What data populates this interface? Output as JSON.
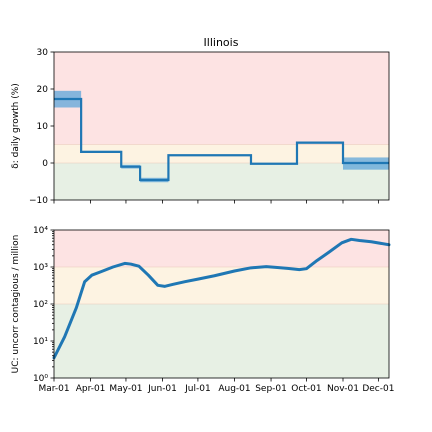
{
  "title": "Illinois",
  "colors": {
    "line": "#1f77b4",
    "band": "#5da5d9",
    "zone_red": "#fde3e3",
    "zone_yellow": "#fdf3e2",
    "zone_green": "#e7f0e4",
    "zone_border": "#e8c8b8"
  },
  "x_tick_labels": [
    "Mar-01",
    "Apr-01",
    "May-01",
    "Jun-01",
    "Jul-01",
    "Aug-01",
    "Sep-01",
    "Oct-01",
    "Nov-01",
    "Dec-01"
  ],
  "chart_data": [
    {
      "type": "line",
      "title": "Illinois",
      "ylabel": "δ: daily growth (%)",
      "ylim": [
        -10,
        30
      ],
      "yticks": [
        "30",
        "20",
        "10",
        "0",
        "−10"
      ],
      "ytick_values": [
        30,
        20,
        10,
        0,
        -10
      ],
      "xlim": [
        "2020-03-01",
        "2020-12-10"
      ],
      "zones": [
        {
          "level": "high",
          "range": [
            5,
            30
          ]
        },
        {
          "level": "medium",
          "range": [
            0,
            5
          ]
        },
        {
          "level": "low",
          "range": [
            -10,
            0
          ]
        }
      ],
      "steps": [
        {
          "start": "2020-03-01",
          "end": "2020-03-24",
          "value": 17.3,
          "low": 15.0,
          "high": 19.5
        },
        {
          "start": "2020-03-24",
          "end": "2020-04-27",
          "value": 3.0,
          "low": 2.7,
          "high": 3.3
        },
        {
          "start": "2020-04-27",
          "end": "2020-05-13",
          "value": -1.0,
          "low": -1.5,
          "high": -0.5
        },
        {
          "start": "2020-05-13",
          "end": "2020-06-06",
          "value": -4.6,
          "low": -5.2,
          "high": -4.0
        },
        {
          "start": "2020-06-06",
          "end": "2020-08-15",
          "value": 2.1,
          "low": 1.9,
          "high": 2.3
        },
        {
          "start": "2020-08-15",
          "end": "2020-09-23",
          "value": -0.2,
          "low": -0.4,
          "high": 0.0
        },
        {
          "start": "2020-09-23",
          "end": "2020-11-01",
          "value": 5.5,
          "low": 5.2,
          "high": 5.8
        },
        {
          "start": "2020-11-01",
          "end": "2020-12-10",
          "value": 0.0,
          "low": -1.8,
          "high": 1.5
        }
      ]
    },
    {
      "type": "line",
      "ylabel": "UC: uncorr contagious / million",
      "yscale": "log",
      "ylim": [
        1,
        10000
      ],
      "yticks": [
        "10⁴",
        "10³",
        "10²",
        "10¹",
        "10⁰"
      ],
      "ytick_values": [
        10000,
        1000,
        100,
        10,
        1
      ],
      "xlim": [
        "2020-03-01",
        "2020-12-10"
      ],
      "zones": [
        {
          "level": "high",
          "range": [
            1000,
            10000
          ]
        },
        {
          "level": "medium",
          "range": [
            100,
            1000
          ]
        },
        {
          "level": "low",
          "range": [
            1,
            100
          ]
        }
      ],
      "series": [
        {
          "x": [
            "2020-03-01",
            "2020-03-10",
            "2020-03-20",
            "2020-03-27",
            "2020-04-02",
            "2020-04-10",
            "2020-04-20",
            "2020-04-30",
            "2020-05-05",
            "2020-05-12",
            "2020-05-20",
            "2020-05-28",
            "2020-06-03",
            "2020-06-10",
            "2020-06-20",
            "2020-07-01",
            "2020-07-15",
            "2020-08-01",
            "2020-08-15",
            "2020-08-28",
            "2020-09-05",
            "2020-09-15",
            "2020-09-25",
            "2020-10-01",
            "2020-10-10",
            "2020-10-20",
            "2020-10-31",
            "2020-11-08",
            "2020-11-15",
            "2020-11-25",
            "2020-12-10"
          ],
          "y": [
            3.5,
            13,
            80,
            400,
            600,
            750,
            1000,
            1250,
            1200,
            1050,
            600,
            320,
            300,
            340,
            400,
            470,
            580,
            780,
            950,
            1020,
            980,
            920,
            850,
            900,
            1500,
            2500,
            4500,
            5600,
            5200,
            4800,
            4000
          ]
        }
      ]
    }
  ]
}
